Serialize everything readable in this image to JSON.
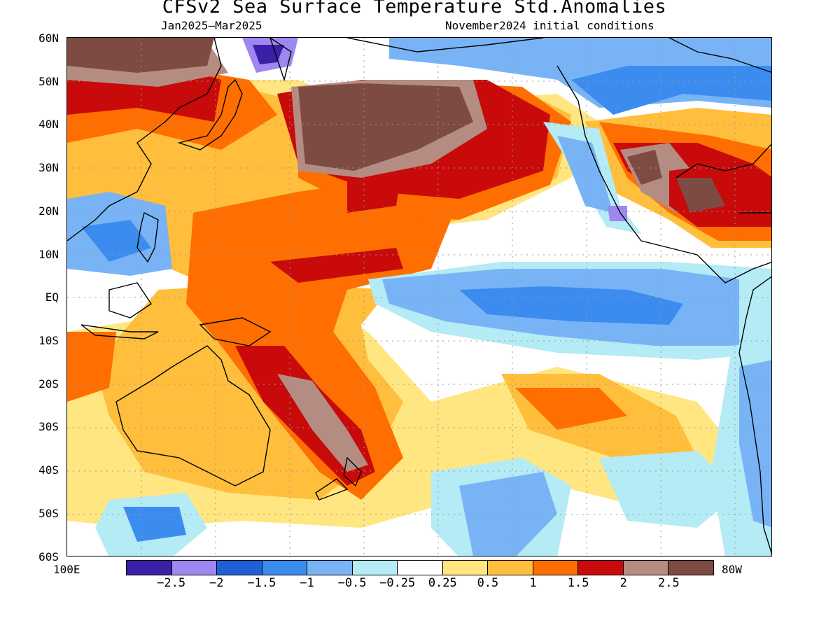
{
  "title": "CFSv2 Sea Surface Temperature Std.Anomalies",
  "subtitle_left": "Jan2025–Mar2025",
  "subtitle_right": "November2024 initial conditions",
  "map": {
    "lon_range": [
      "100E",
      "80W"
    ],
    "lat_range": [
      "60S",
      "60N"
    ],
    "lat_labels": [
      "60N",
      "50N",
      "40N",
      "30N",
      "20N",
      "10N",
      "EQ",
      "10S",
      "20S",
      "30S",
      "40S",
      "50S",
      "60S"
    ],
    "lon_left_label": "100E",
    "lon_right_label": "80W"
  },
  "colorbar": {
    "colors": [
      "#3b1fa6",
      "#9e87f0",
      "#1f5fd6",
      "#3c8cf0",
      "#78b4f5",
      "#b4ebf5",
      "#ffffff",
      "#ffe680",
      "#ffbe3c",
      "#ff6e00",
      "#c80a0a",
      "#b48c82",
      "#7d4b41"
    ],
    "labels": [
      "−2.5",
      "−2",
      "−1.5",
      "−1",
      "−0.5",
      "−0.25",
      "0.25",
      "0.5",
      "1",
      "1.5",
      "2",
      "2.5"
    ]
  },
  "regions": [
    {
      "name": "warm-north-pacific",
      "level": 2.5
    },
    {
      "name": "warm-west-pacific",
      "level": 1.5
    },
    {
      "name": "cool-equatorial-east-pacific",
      "level": -1
    },
    {
      "name": "warm-southwest-pacific",
      "level": 2
    },
    {
      "name": "cool-northeast-pacific",
      "level": -1
    },
    {
      "name": "warm-gulf-of-mexico",
      "level": 2.5
    }
  ]
}
